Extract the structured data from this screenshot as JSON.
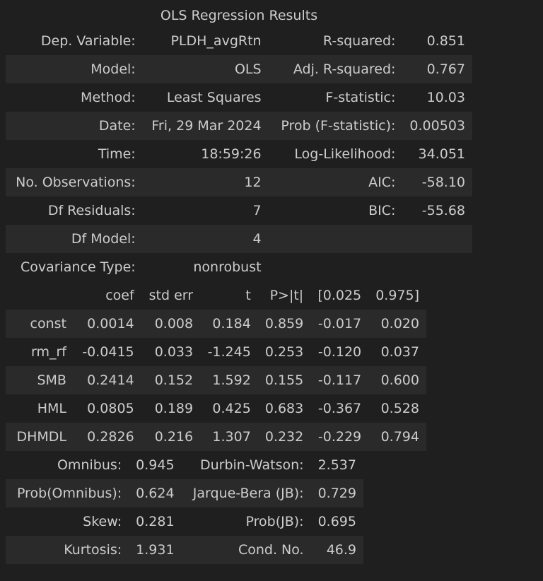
{
  "title": "OLS Regression Results",
  "summary": [
    [
      "Dep. Variable:",
      "PLDH_avgRtn",
      "R-squared:",
      "0.851"
    ],
    [
      "Model:",
      "OLS",
      "Adj. R-squared:",
      "0.767"
    ],
    [
      "Method:",
      "Least Squares",
      "F-statistic:",
      "10.03"
    ],
    [
      "Date:",
      "Fri, 29 Mar 2024",
      "Prob (F-statistic):",
      "0.00503"
    ],
    [
      "Time:",
      "18:59:26",
      "Log-Likelihood:",
      "34.051"
    ],
    [
      "No. Observations:",
      "12",
      "AIC:",
      "-58.10"
    ],
    [
      "Df Residuals:",
      "7",
      "BIC:",
      "-55.68"
    ],
    [
      "Df Model:",
      "4",
      "",
      ""
    ],
    [
      "Covariance Type:",
      "nonrobust",
      "",
      ""
    ]
  ],
  "coef_headers": [
    "",
    "coef",
    "std err",
    "t",
    "P>|t|",
    "[0.025",
    "0.975]"
  ],
  "coef_rows": [
    [
      "const",
      "0.0014",
      "0.008",
      "0.184",
      "0.859",
      "-0.017",
      "0.020"
    ],
    [
      "rm_rf",
      "-0.0415",
      "0.033",
      "-1.245",
      "0.253",
      "-0.120",
      "0.037"
    ],
    [
      "SMB",
      "0.2414",
      "0.152",
      "1.592",
      "0.155",
      "-0.117",
      "0.600"
    ],
    [
      "HML",
      "0.0805",
      "0.189",
      "0.425",
      "0.683",
      "-0.367",
      "0.528"
    ],
    [
      "DHMDL",
      "0.2826",
      "0.216",
      "1.307",
      "0.232",
      "-0.229",
      "0.794"
    ]
  ],
  "diagnostics": [
    [
      "Omnibus:",
      "0.945",
      "Durbin-Watson:",
      "2.537"
    ],
    [
      "Prob(Omnibus):",
      "0.624",
      "Jarque-Bera (JB):",
      "0.729"
    ],
    [
      "Skew:",
      "0.281",
      "Prob(JB):",
      "0.695"
    ],
    [
      "Kurtosis:",
      "1.931",
      "Cond. No.",
      "46.9"
    ]
  ]
}
